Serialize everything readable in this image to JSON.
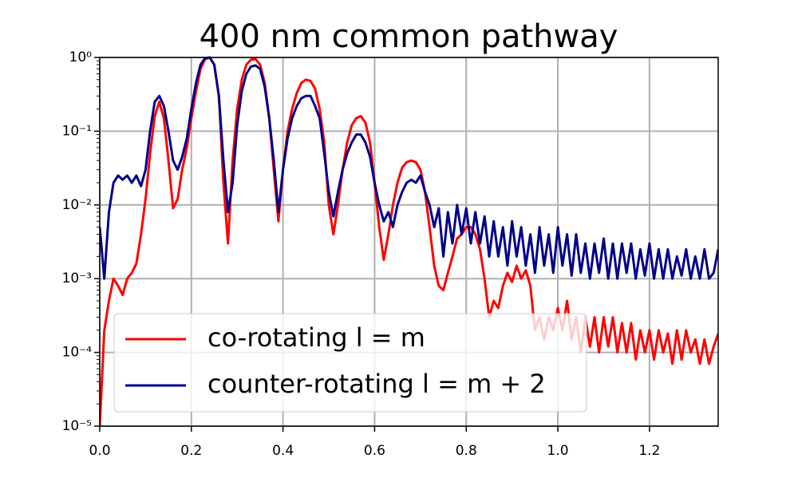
{
  "chart_data": {
    "type": "line",
    "title": "400 nm common pathway",
    "x": [
      0,
      0.01,
      0.02,
      0.03,
      0.04,
      0.05,
      0.06,
      0.07,
      0.08,
      0.09,
      0.1,
      0.11,
      0.12,
      0.13,
      0.14,
      0.15,
      0.16,
      0.17,
      0.18,
      0.19,
      0.2,
      0.21,
      0.22,
      0.23,
      0.24,
      0.25,
      0.26,
      0.27,
      0.28,
      0.29,
      0.3,
      0.31,
      0.32,
      0.33,
      0.34,
      0.35,
      0.36,
      0.37,
      0.38,
      0.39,
      0.4,
      0.41,
      0.42,
      0.43,
      0.44,
      0.45,
      0.46,
      0.47,
      0.48,
      0.49,
      0.5,
      0.51,
      0.52,
      0.53,
      0.54,
      0.55,
      0.56,
      0.57,
      0.58,
      0.59,
      0.6,
      0.61,
      0.62,
      0.63,
      0.64,
      0.65,
      0.66,
      0.67,
      0.68,
      0.69,
      0.7,
      0.71,
      0.72,
      0.73,
      0.74,
      0.75,
      0.76,
      0.77,
      0.78,
      0.79,
      0.8,
      0.81,
      0.82,
      0.83,
      0.84,
      0.85,
      0.86,
      0.87,
      0.88,
      0.89,
      0.9,
      0.91,
      0.92,
      0.93,
      0.94,
      0.95,
      0.96,
      0.97,
      0.98,
      0.99,
      1.0,
      1.01,
      1.02,
      1.03,
      1.04,
      1.05,
      1.06,
      1.07,
      1.08,
      1.09,
      1.1,
      1.11,
      1.12,
      1.13,
      1.14,
      1.15,
      1.16,
      1.17,
      1.18,
      1.19,
      1.2,
      1.21,
      1.22,
      1.23,
      1.24,
      1.25,
      1.26,
      1.27,
      1.28,
      1.29,
      1.3,
      1.31,
      1.32,
      1.33,
      1.34,
      1.35
    ],
    "series": [
      {
        "name": "co-rotating l = m",
        "color": "#ff0000",
        "values": [
          1e-05,
          0.0002,
          0.0005,
          0.001,
          0.0008,
          0.0006,
          0.001,
          0.0012,
          0.0016,
          0.004,
          0.012,
          0.05,
          0.16,
          0.25,
          0.15,
          0.04,
          0.009,
          0.012,
          0.03,
          0.06,
          0.15,
          0.35,
          0.7,
          0.95,
          1.0,
          0.8,
          0.3,
          0.02,
          0.003,
          0.04,
          0.2,
          0.5,
          0.8,
          0.93,
          0.95,
          0.8,
          0.45,
          0.15,
          0.03,
          0.006,
          0.03,
          0.1,
          0.2,
          0.33,
          0.45,
          0.5,
          0.48,
          0.38,
          0.2,
          0.07,
          0.01,
          0.004,
          0.01,
          0.03,
          0.07,
          0.12,
          0.15,
          0.16,
          0.13,
          0.07,
          0.02,
          0.005,
          0.0018,
          0.004,
          0.01,
          0.02,
          0.032,
          0.038,
          0.04,
          0.038,
          0.03,
          0.015,
          0.005,
          0.0015,
          0.0008,
          0.0007,
          0.0012,
          0.002,
          0.0035,
          0.004,
          0.005,
          0.005,
          0.004,
          0.0025,
          0.001,
          0.0003,
          0.0005,
          0.0004,
          0.0008,
          0.0012,
          0.0009,
          0.0015,
          0.001,
          0.0013,
          0.0008,
          0.0002,
          0.0003,
          0.00015,
          0.0003,
          0.0002,
          0.0004,
          0.0002,
          0.0005,
          0.00015,
          0.0003,
          0.0001,
          0.0003,
          0.00012,
          0.0003,
          0.0001,
          0.0003,
          0.00012,
          0.0003,
          0.0001,
          0.00025,
          0.0001,
          0.00025,
          8e-05,
          0.0002,
          0.0001,
          0.0002,
          8e-05,
          0.0002,
          0.0001,
          0.00018,
          7e-05,
          0.0002,
          8e-05,
          0.0002,
          0.0001,
          0.00015,
          7e-05,
          0.00015,
          7e-05,
          0.00012,
          0.00018
        ]
      },
      {
        "name": "counter-rotating l = m + 2",
        "color": "#00008b",
        "values": [
          0.005,
          0.001,
          0.008,
          0.02,
          0.025,
          0.022,
          0.025,
          0.02,
          0.025,
          0.018,
          0.03,
          0.1,
          0.25,
          0.3,
          0.22,
          0.1,
          0.04,
          0.03,
          0.045,
          0.08,
          0.2,
          0.45,
          0.8,
          0.98,
          1.0,
          0.8,
          0.3,
          0.04,
          0.008,
          0.02,
          0.12,
          0.35,
          0.6,
          0.75,
          0.78,
          0.7,
          0.4,
          0.15,
          0.04,
          0.008,
          0.03,
          0.08,
          0.15,
          0.22,
          0.28,
          0.3,
          0.3,
          0.22,
          0.15,
          0.05,
          0.015,
          0.007,
          0.015,
          0.03,
          0.05,
          0.07,
          0.09,
          0.09,
          0.07,
          0.045,
          0.02,
          0.01,
          0.006,
          0.008,
          0.005,
          0.01,
          0.015,
          0.02,
          0.022,
          0.02,
          0.025,
          0.015,
          0.01,
          0.005,
          0.009,
          0.002,
          0.008,
          0.003,
          0.01,
          0.004,
          0.009,
          0.003,
          0.008,
          0.003,
          0.007,
          0.002,
          0.006,
          0.002,
          0.005,
          0.0015,
          0.006,
          0.002,
          0.005,
          0.0015,
          0.004,
          0.0012,
          0.005,
          0.0015,
          0.004,
          0.0012,
          0.005,
          0.0015,
          0.004,
          0.0011,
          0.004,
          0.0012,
          0.003,
          0.001,
          0.003,
          0.0012,
          0.0035,
          0.001,
          0.003,
          0.001,
          0.003,
          0.0012,
          0.003,
          0.001,
          0.0025,
          0.0011,
          0.003,
          0.001,
          0.0025,
          0.001,
          0.0025,
          0.001,
          0.002,
          0.0011,
          0.0025,
          0.001,
          0.002,
          0.001,
          0.0025,
          0.001,
          0.0012,
          0.0025
        ]
      }
    ],
    "xlim": [
      0,
      1.35
    ],
    "ylim": [
      1e-05,
      1
    ],
    "log_y": true,
    "grid": true,
    "legend": "lower left",
    "xticks": [
      {
        "value": 0,
        "label": "0.0"
      },
      0.2,
      0.4,
      0.6,
      0.8,
      {
        "value": 1,
        "label": "1.0"
      },
      1.2
    ],
    "yticks": [
      {
        "value": 1e-05,
        "label": "10⁻⁵"
      },
      {
        "value": 0.0001,
        "label": "10⁻⁴"
      },
      {
        "value": 0.001,
        "label": "10⁻³"
      },
      {
        "value": 0.01,
        "label": "10⁻²"
      },
      {
        "value": 0.1,
        "label": "10⁻¹"
      },
      {
        "value": 1,
        "label": "10⁰"
      }
    ]
  }
}
